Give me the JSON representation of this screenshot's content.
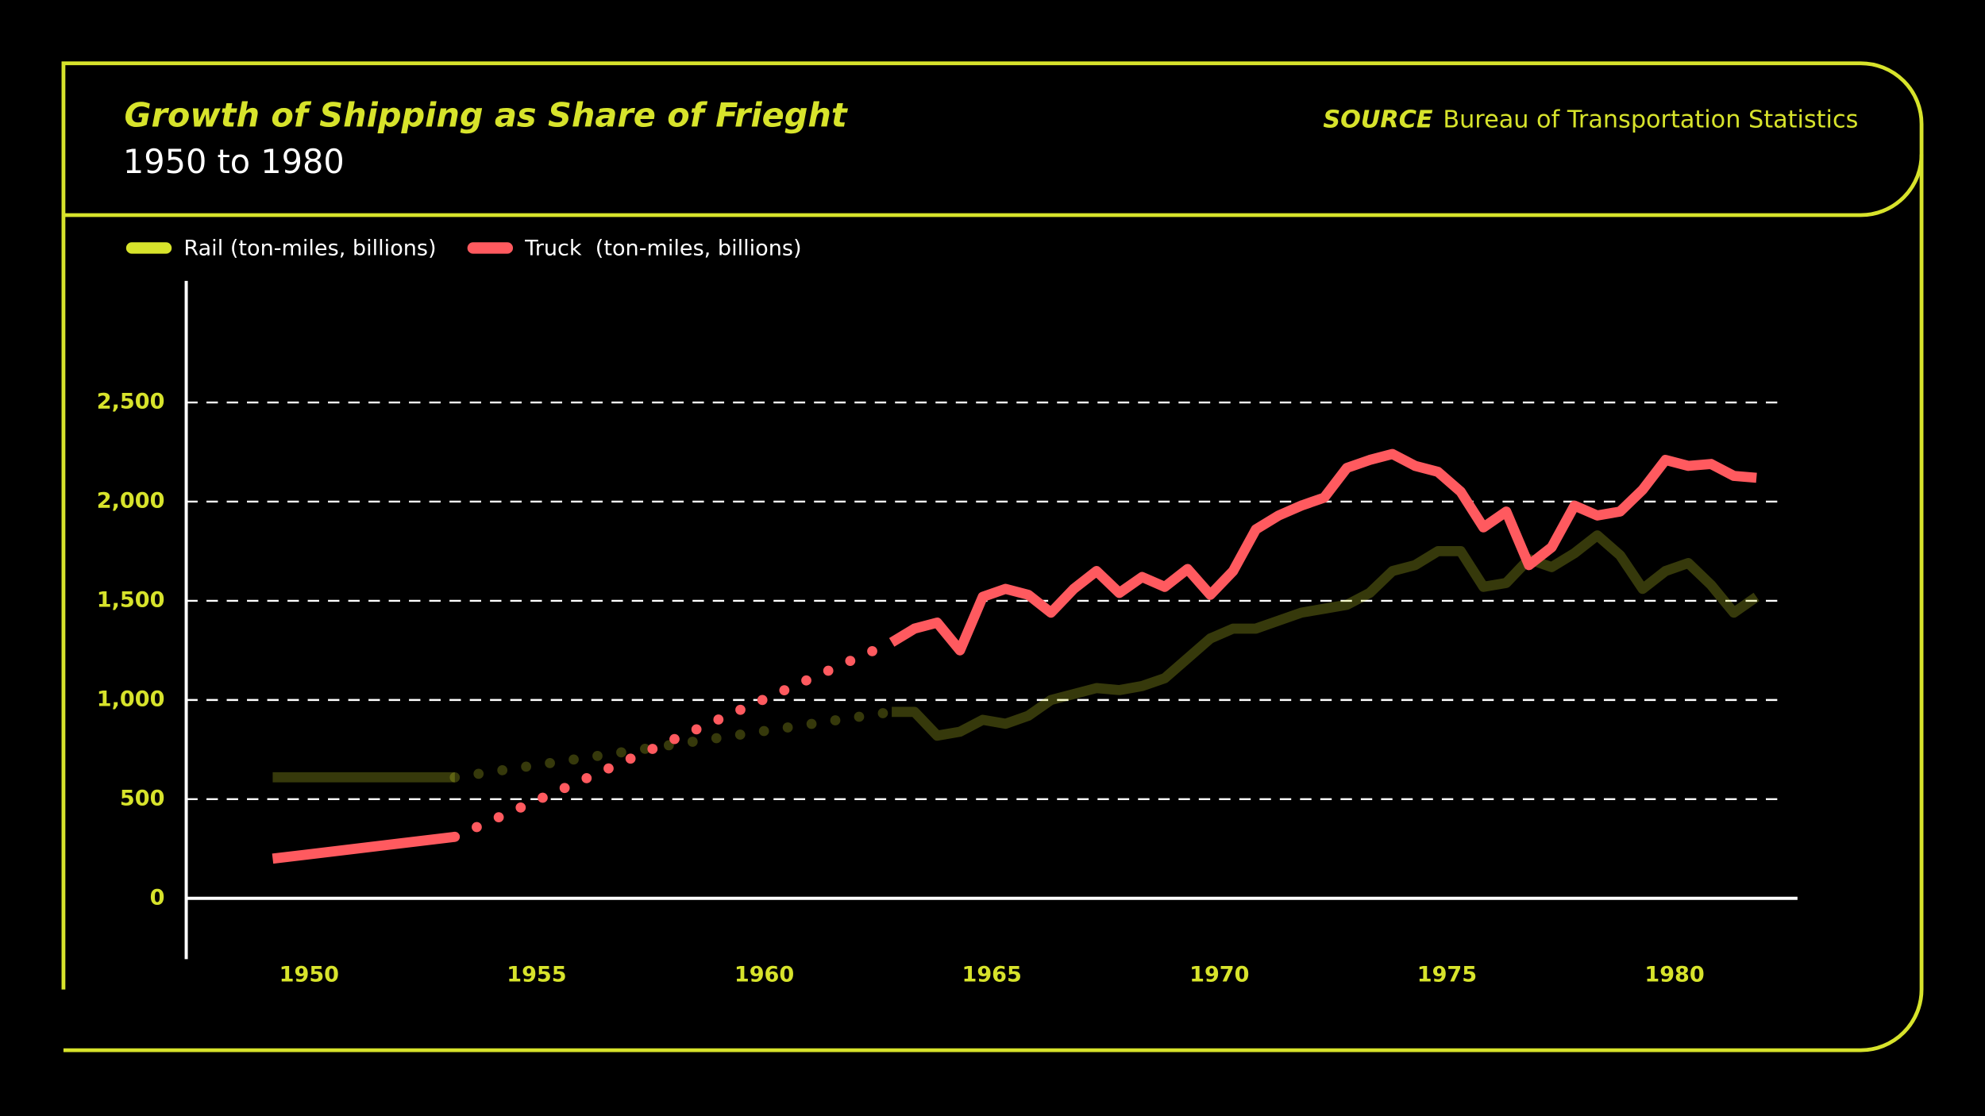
{
  "chart_data": {
    "type": "line",
    "title": "Growth of Shipping as Share of Frieght",
    "subtitle": "1950 to 1980",
    "source_label": "SOURCE",
    "source": "Bureau of Transportation Statistics",
    "x": [
      1949.2,
      1953.2,
      1958,
      1962.8,
      1963.3,
      1963.8,
      1964.3,
      1964.8,
      1965.3,
      1965.8,
      1966.3,
      1966.8,
      1967.3,
      1967.8,
      1968.3,
      1968.8,
      1969.3,
      1969.8,
      1970.3,
      1970.8,
      1971.3,
      1971.8,
      1972.3,
      1972.8,
      1973.3,
      1973.8,
      1974.3,
      1974.8,
      1975.3,
      1975.8,
      1976.3,
      1976.8,
      1977.3,
      1977.8,
      1978.3,
      1978.8,
      1979.3,
      1979.8,
      1980.3,
      1980.8,
      1981.3,
      1981.8
    ],
    "series": [
      {
        "name": "Rail (ton-miles, billions)",
        "color": "#d7e32b",
        "opacity": 0.25,
        "values": [
          610,
          610,
          null,
          940,
          940,
          820,
          840,
          900,
          880,
          920,
          1000,
          1030,
          1060,
          1050,
          1070,
          1110,
          1210,
          1310,
          1360,
          1360,
          1400,
          1440,
          1460,
          1480,
          1540,
          1650,
          1680,
          1750,
          1750,
          1570,
          1590,
          1710,
          1670,
          1740,
          1830,
          1730,
          1560,
          1650,
          1690,
          1580,
          1440,
          1520
        ]
      },
      {
        "name": "Truck  (ton-miles, billions)",
        "color": "#ff5a5f",
        "opacity": 1,
        "values": [
          200,
          310,
          null,
          1290,
          1360,
          1390,
          1250,
          1520,
          1560,
          1530,
          1440,
          1560,
          1650,
          1540,
          1620,
          1570,
          1660,
          1530,
          1650,
          1860,
          1930,
          1980,
          2020,
          2170,
          2210,
          2240,
          2180,
          2150,
          2050,
          1870,
          1950,
          1680,
          1770,
          1980,
          1930,
          1950,
          2060,
          2210,
          2180,
          2190,
          2130,
          2120
        ]
      }
    ],
    "gap_style": "dotted",
    "xlim": [
      1947.3,
      1982.7
    ],
    "xticks": [
      1950,
      1955,
      1960,
      1965,
      1970,
      1975,
      1980
    ],
    "ylim": [
      -300,
      3100
    ],
    "yticks": [
      0,
      {
        "value": 500,
        "label": "500"
      },
      {
        "value": 1000,
        "label": "1,000"
      },
      {
        "value": 1500,
        "label": "1,500"
      },
      {
        "value": 2000,
        "label": "2,000"
      },
      {
        "value": 2500,
        "label": "2,500"
      }
    ],
    "grid": true
  }
}
